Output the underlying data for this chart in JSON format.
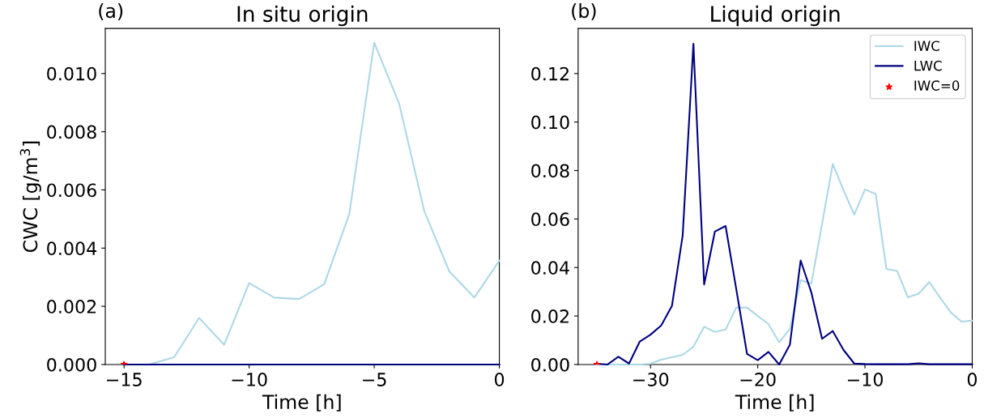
{
  "chart_data": [
    {
      "type": "line",
      "title": "In situ origin",
      "xlabel": "Time [h]",
      "ylabel": "CWC [g/m$^{3}$]",
      "annotations": [
        "(a)"
      ],
      "legend": false,
      "grid": false,
      "x": [
        -15,
        -14,
        -13,
        -12,
        -11,
        -10,
        -9,
        -8,
        -7,
        -6,
        -5,
        -4,
        -3,
        -2,
        -1,
        0
      ],
      "xlim": [
        -15.75,
        0
      ],
      "xticks": [
        {
          "value": -15,
          "label": "−15"
        },
        {
          "value": -10,
          "label": "−10"
        },
        {
          "value": -5,
          "label": "−5"
        },
        0
      ],
      "ylim": [
        0,
        0.01155
      ],
      "yticks": [
        {
          "value": 0,
          "label": "0.000"
        },
        {
          "value": 0.002,
          "label": "0.002"
        },
        {
          "value": 0.004,
          "label": "0.004"
        },
        {
          "value": 0.006,
          "label": "0.006"
        },
        {
          "value": 0.008,
          "label": "0.008"
        },
        {
          "value": 0.01,
          "label": "0.010"
        }
      ],
      "series": [
        {
          "color": "#add8e6",
          "values": [
            0,
            0,
            0.00025,
            0.0016,
            0.00068,
            0.0028,
            0.0023,
            0.00225,
            0.00276,
            0.00516,
            0.01106,
            0.00895,
            0.00527,
            0.0032,
            0.0023,
            0.00357
          ]
        },
        {
          "color": "#000080",
          "values": [
            0,
            0,
            0,
            0,
            0,
            0,
            0,
            0,
            0,
            0,
            0,
            0,
            0,
            0,
            0,
            0
          ]
        },
        {
          "type": "scatter",
          "marker": "star",
          "color": "#ff0000",
          "x": [
            -15
          ],
          "values": [
            0
          ]
        }
      ]
    },
    {
      "type": "line",
      "title": "Liquid origin",
      "xlabel": "Time [h]",
      "annotations": [
        "(b)"
      ],
      "legend": "top right",
      "grid": false,
      "x": [
        -35,
        -34,
        -33,
        -32,
        -31,
        -30,
        -29,
        -28,
        -27,
        -26,
        -25,
        -24,
        -23,
        -22,
        -21,
        -20,
        -19,
        -18,
        -17,
        -16,
        -15,
        -14,
        -13,
        -12,
        -11,
        -10,
        -9,
        -8,
        -7,
        -6,
        -5,
        -4,
        -3,
        -2,
        -1,
        0
      ],
      "xlim": [
        -36.75,
        0
      ],
      "xticks": [
        {
          "value": -30,
          "label": "−30"
        },
        {
          "value": -20,
          "label": "−20"
        },
        {
          "value": -10,
          "label": "−10"
        },
        0
      ],
      "ylim": [
        0,
        0.1386
      ],
      "yticks": [
        {
          "value": 0,
          "label": "0.00"
        },
        {
          "value": 0.02,
          "label": "0.02"
        },
        {
          "value": 0.04,
          "label": "0.04"
        },
        {
          "value": 0.06,
          "label": "0.06"
        },
        {
          "value": 0.08,
          "label": "0.08"
        },
        {
          "value": 0.1,
          "label": "0.10"
        },
        {
          "value": 0.12,
          "label": "0.12"
        }
      ],
      "series": [
        {
          "name": "IWC",
          "color": "#add8e6",
          "values": [
            0,
            0,
            0,
            0,
            0,
            0.0003,
            0.002,
            0.003,
            0.004,
            0.0073,
            0.0156,
            0.0134,
            0.0144,
            0.0235,
            0.0235,
            0.02,
            0.0167,
            0.0091,
            0.0147,
            0.0348,
            0.0333,
            0.058,
            0.0827,
            0.0719,
            0.0618,
            0.0722,
            0.0703,
            0.0394,
            0.0386,
            0.0277,
            0.0292,
            0.034,
            0.0276,
            0.0215,
            0.0177,
            0.0181
          ]
        },
        {
          "name": "LWC",
          "color": "#000080",
          "values": [
            0.0003,
            0,
            0.0032,
            0.0004,
            0.0095,
            0.0123,
            0.0161,
            0.0242,
            0.0532,
            0.1323,
            0.033,
            0.0548,
            0.0571,
            0.031,
            0.0044,
            0.0018,
            0.0052,
            0,
            0.0082,
            0.0429,
            0.0297,
            0.0106,
            0.0138,
            0.006,
            0.0004,
            0.0002,
            0.0001,
            0.0001,
            0.0001,
            0.0001,
            0.0005,
            0.0001,
            0.0001,
            0.0001,
            0.0001,
            0.0001
          ]
        },
        {
          "name": "IWC=0",
          "type": "scatter",
          "marker": "star",
          "color": "#ff0000",
          "x": [
            -35
          ],
          "values": [
            0
          ]
        }
      ]
    }
  ]
}
